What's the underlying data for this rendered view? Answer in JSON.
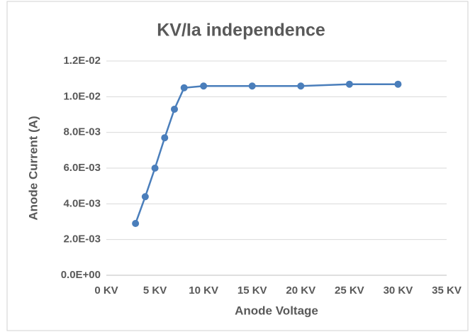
{
  "chart_data": {
    "type": "line",
    "title": "KV/Ia independence",
    "x_label": "Anode Voltage",
    "y_label": "Anode Current (A)",
    "x": [
      3,
      4,
      5,
      6,
      7,
      8,
      10,
      15,
      20,
      25,
      30
    ],
    "series": [
      {
        "name": "Anode Current",
        "color": "#4a7ebb",
        "values": [
          0.0029,
          0.0044,
          0.006,
          0.0077,
          0.0093,
          0.0105,
          0.0106,
          0.0106,
          0.0106,
          0.0107,
          0.0107
        ]
      }
    ],
    "xlim": [
      0,
      35
    ],
    "xticks": [
      {
        "value": 0,
        "label": "0 KV"
      },
      {
        "value": 5,
        "label": "5 KV"
      },
      {
        "value": 10,
        "label": "10 KV"
      },
      {
        "value": 15,
        "label": "15 KV"
      },
      {
        "value": 20,
        "label": "20 KV"
      },
      {
        "value": 25,
        "label": "25 KV"
      },
      {
        "value": 30,
        "label": "30 KV"
      },
      {
        "value": 35,
        "label": "35 KV"
      }
    ],
    "ylim": [
      0,
      0.012
    ],
    "yticks": [
      {
        "value": 0,
        "label": "0.0E+00"
      },
      {
        "value": 0.002,
        "label": "2.0E-03"
      },
      {
        "value": 0.004,
        "label": "4.0E-03"
      },
      {
        "value": 0.006,
        "label": "6.0E-03"
      },
      {
        "value": 0.008,
        "label": "8.0E-03"
      },
      {
        "value": 0.01,
        "label": "1.0E-02"
      },
      {
        "value": 0.012,
        "label": "1.2E-02"
      }
    ],
    "grid": true
  }
}
